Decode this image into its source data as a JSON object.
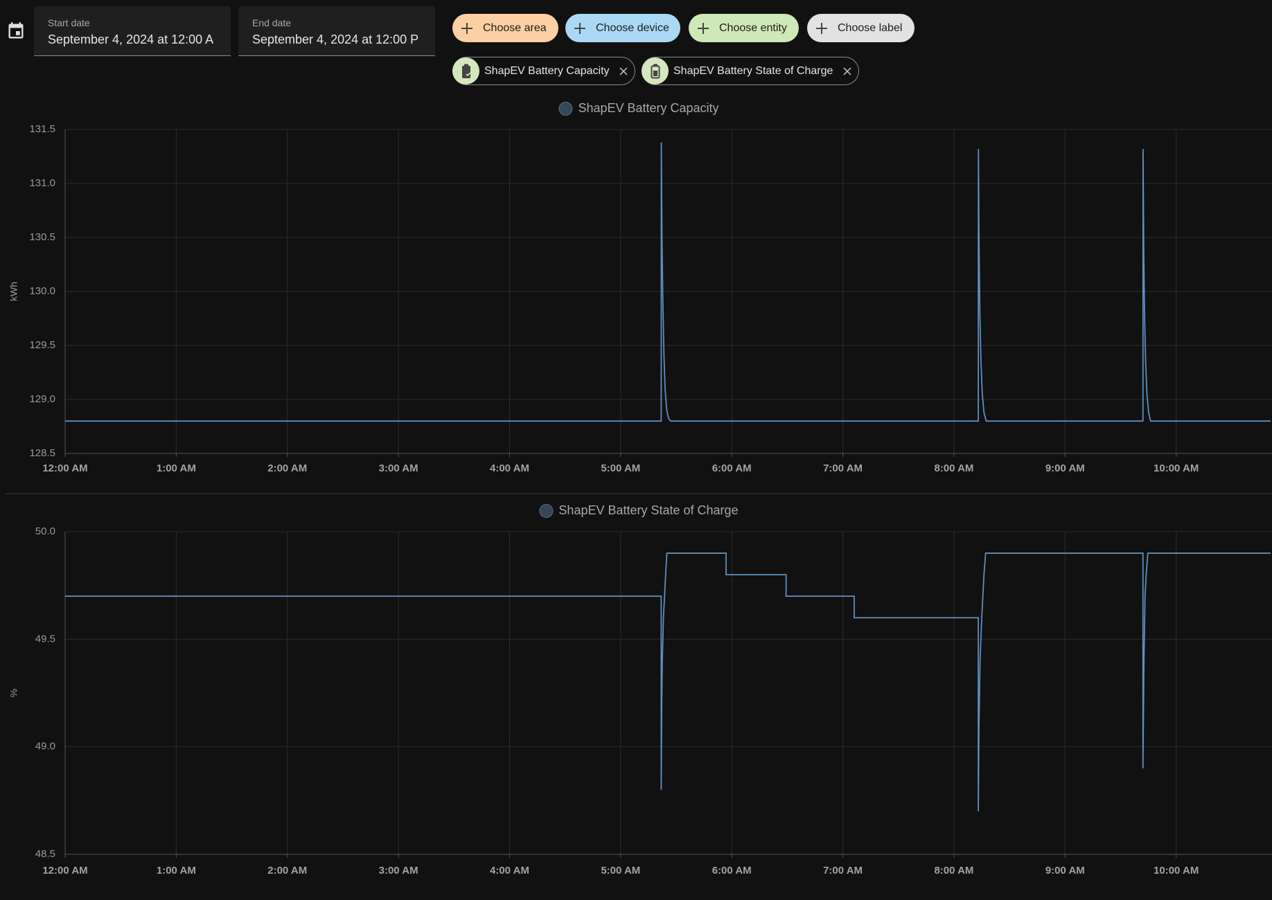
{
  "date_range": {
    "start_label": "Start date",
    "start_value": "September 4, 2024 at 12:00 A",
    "end_label": "End date",
    "end_value": "September 4, 2024 at 12:00 P"
  },
  "target_picker": {
    "add_buttons": [
      "Choose area",
      "Choose device",
      "Choose entity",
      "Choose label"
    ],
    "selected": [
      "ShapEV Battery Capacity",
      "ShapEV Battery State of Charge"
    ]
  },
  "chart_data": [
    {
      "type": "line",
      "y_label": "kWh",
      "x": [
        0,
        5.365,
        5.366,
        5.372,
        5.38,
        5.39,
        5.4,
        5.415,
        5.43,
        5.45,
        8.219,
        8.22,
        8.226,
        8.233,
        8.243,
        8.255,
        8.27,
        8.29,
        9.701,
        9.702,
        9.708,
        9.715,
        9.725,
        9.737,
        9.752,
        9.77,
        10.85
      ],
      "series": [
        {
          "name": "ShapEV Battery Capacity",
          "color": "#5f8fbf",
          "values": [
            128.8,
            128.8,
            131.38,
            130.5,
            129.9,
            129.4,
            129.1,
            128.9,
            128.83,
            128.8,
            128.8,
            131.32,
            130.4,
            129.8,
            129.35,
            129.05,
            128.88,
            128.8,
            128.8,
            131.32,
            130.4,
            129.8,
            129.35,
            129.05,
            128.88,
            128.8,
            128.8
          ]
        }
      ],
      "xlim": [
        0,
        10.85
      ],
      "xticks": [
        {
          "value": 0,
          "label": "12:00 AM"
        },
        {
          "value": 1,
          "label": "1:00 AM"
        },
        {
          "value": 2,
          "label": "2:00 AM"
        },
        {
          "value": 3,
          "label": "3:00 AM"
        },
        {
          "value": 4,
          "label": "4:00 AM"
        },
        {
          "value": 5,
          "label": "5:00 AM"
        },
        {
          "value": 6,
          "label": "6:00 AM"
        },
        {
          "value": 7,
          "label": "7:00 AM"
        },
        {
          "value": 8,
          "label": "8:00 AM"
        },
        {
          "value": 9,
          "label": "9:00 AM"
        },
        {
          "value": 10,
          "label": "10:00 AM"
        }
      ],
      "ylim": [
        128.5,
        131.5
      ],
      "yticks": [
        128.5,
        {
          "value": 129,
          "label": "129.0"
        },
        129.5,
        {
          "value": 130,
          "label": "130.0"
        },
        130.5,
        {
          "value": 131,
          "label": "131.0"
        },
        131.5
      ],
      "grid": true
    },
    {
      "type": "line",
      "y_label": "%",
      "x": [
        0,
        5.365,
        5.365,
        5.37,
        5.375,
        5.385,
        5.395,
        5.405,
        5.416,
        5.949,
        5.949,
        6.489,
        6.489,
        7.102,
        7.102,
        8.219,
        8.219,
        8.225,
        8.235,
        8.25,
        8.26,
        8.27,
        8.285,
        9.701,
        9.701,
        9.71,
        9.72,
        9.73,
        9.745,
        10.85
      ],
      "series": [
        {
          "name": "ShapEV Battery State of Charge",
          "color": "#5f8fbf",
          "values": [
            49.7,
            49.7,
            48.8,
            49.2,
            49.4,
            49.6,
            49.7,
            49.8,
            49.9,
            49.9,
            49.8,
            49.8,
            49.7,
            49.7,
            49.6,
            49.6,
            48.7,
            49.1,
            49.4,
            49.6,
            49.7,
            49.8,
            49.9,
            49.9,
            48.9,
            49.4,
            49.7,
            49.8,
            49.9,
            49.9
          ]
        }
      ],
      "xlim": [
        0,
        10.85
      ],
      "xticks": [
        {
          "value": 0,
          "label": "12:00 AM"
        },
        {
          "value": 1,
          "label": "1:00 AM"
        },
        {
          "value": 2,
          "label": "2:00 AM"
        },
        {
          "value": 3,
          "label": "3:00 AM"
        },
        {
          "value": 4,
          "label": "4:00 AM"
        },
        {
          "value": 5,
          "label": "5:00 AM"
        },
        {
          "value": 6,
          "label": "6:00 AM"
        },
        {
          "value": 7,
          "label": "7:00 AM"
        },
        {
          "value": 8,
          "label": "8:00 AM"
        },
        {
          "value": 9,
          "label": "9:00 AM"
        },
        {
          "value": 10,
          "label": "10:00 AM"
        }
      ],
      "ylim": [
        48.5,
        50
      ],
      "yticks": [
        48.5,
        {
          "value": 49,
          "label": "49.0"
        },
        49.5,
        {
          "value": 50,
          "label": "50.0"
        }
      ],
      "grid": true
    }
  ]
}
